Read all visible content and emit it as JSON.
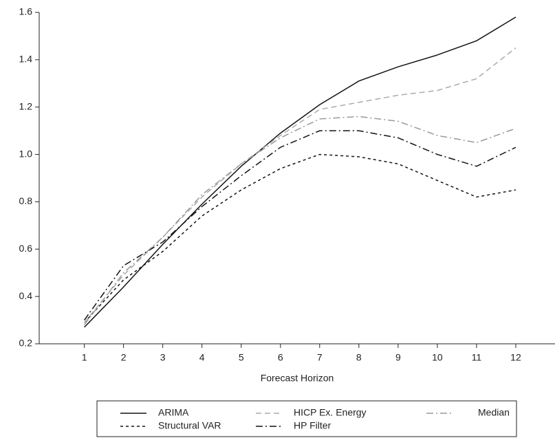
{
  "chart_data": {
    "type": "line",
    "xlabel": "Forecast Horizon",
    "x": [
      1,
      2,
      3,
      4,
      5,
      6,
      7,
      8,
      9,
      10,
      11,
      12
    ],
    "xlim": [
      -0.15,
      13
    ],
    "xticks": [
      1,
      2,
      3,
      4,
      5,
      6,
      7,
      8,
      9,
      10,
      11,
      12
    ],
    "ylim": [
      0.2,
      1.6
    ],
    "yticks": [
      0.2,
      0.4,
      0.6,
      0.8,
      {
        "value": 1,
        "label": "1.0"
      },
      1.2,
      1.4,
      1.6
    ],
    "legend": "bottom",
    "series": [
      {
        "name": "ARIMA",
        "color": "#111111",
        "dash": "solid",
        "values": [
          0.27,
          0.44,
          0.62,
          0.79,
          0.95,
          1.09,
          1.21,
          1.31,
          1.37,
          1.42,
          1.48,
          1.58
        ]
      },
      {
        "name": "Structural VAR",
        "color": "#111111",
        "dash": "dashed",
        "values": [
          0.29,
          0.47,
          0.59,
          0.74,
          0.85,
          0.94,
          1.0,
          0.99,
          0.96,
          0.89,
          0.82,
          0.85
        ]
      },
      {
        "name": "HICP Ex. Energy",
        "color": "#aaaaaa",
        "dash": "longdash",
        "values": [
          0.29,
          0.49,
          0.65,
          0.82,
          0.96,
          1.08,
          1.19,
          1.22,
          1.25,
          1.27,
          1.32,
          1.45
        ]
      },
      {
        "name": "HP Filter",
        "color": "#111111",
        "dash": "dashdot",
        "values": [
          0.3,
          0.53,
          0.63,
          0.78,
          0.91,
          1.03,
          1.1,
          1.1,
          1.07,
          1.0,
          0.95,
          1.03
        ]
      },
      {
        "name": "Median",
        "color": "#999999",
        "dash": "dashdot",
        "values": [
          0.28,
          0.5,
          0.65,
          0.83,
          0.96,
          1.07,
          1.15,
          1.16,
          1.14,
          1.08,
          1.05,
          1.11
        ]
      }
    ]
  }
}
